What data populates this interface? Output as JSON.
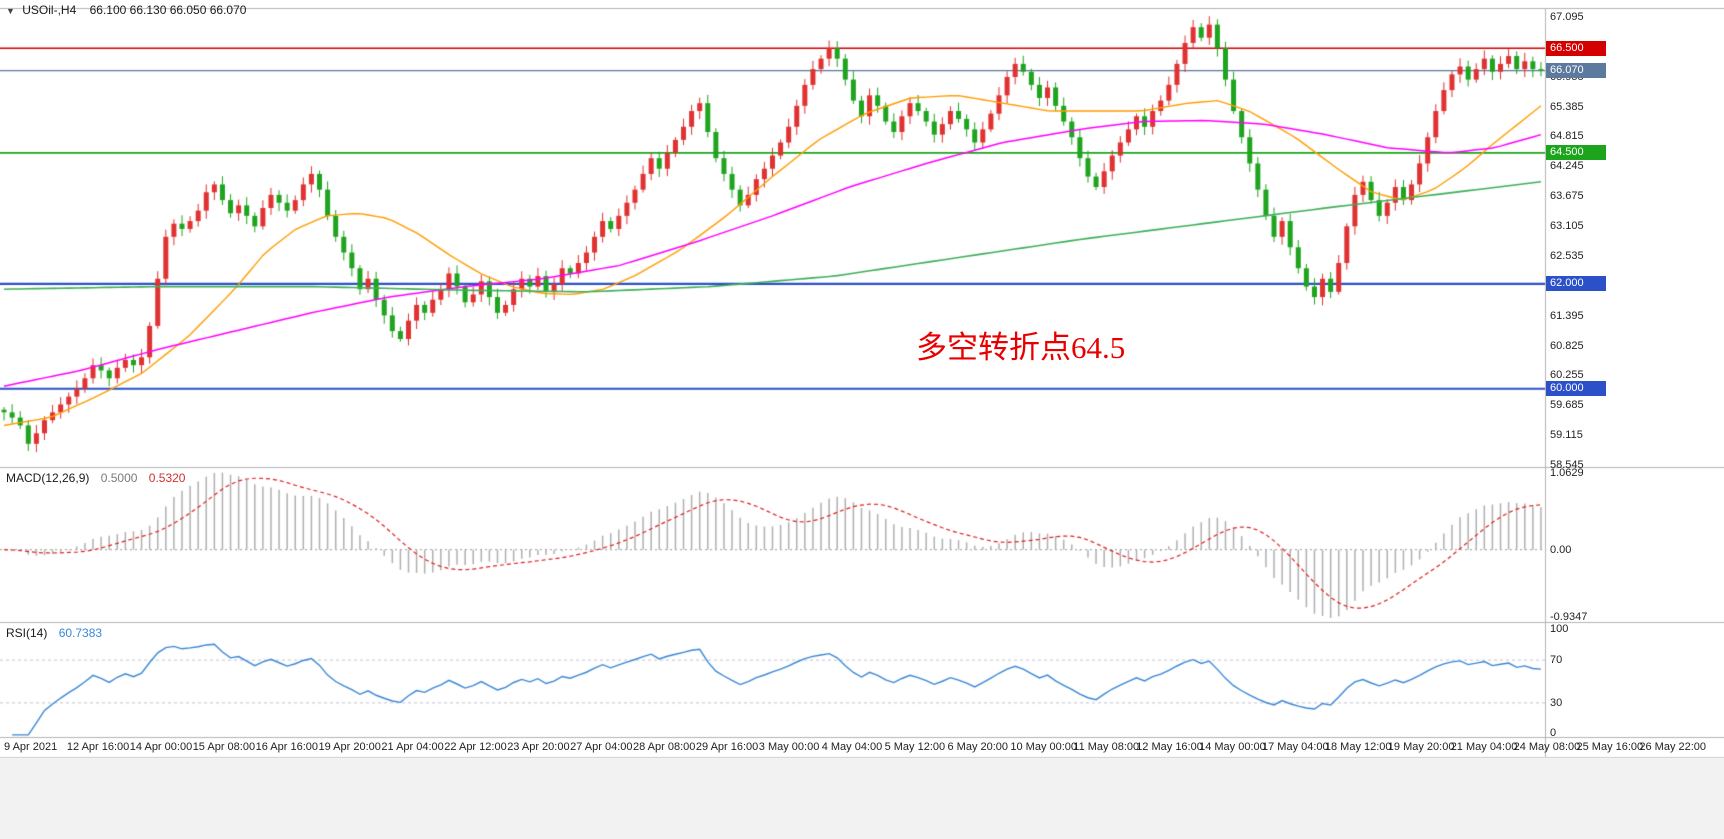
{
  "header": {
    "symbol": "USOil-,H4",
    "quote": "66.100 66.130 66.050 66.070"
  },
  "annotation": {
    "text": "多空转折点64.5",
    "color": "#e80000"
  },
  "chart_data": {
    "type": "candlestick",
    "title": "USOil- H4",
    "timeframe": "H4",
    "price_axis": {
      "min": 58.545,
      "max": 67.095,
      "step": 0.57,
      "tick_labels": [
        "67.095",
        "65.955",
        "65.385",
        "64.815",
        "64.245",
        "63.675",
        "63.105",
        "62.535",
        "61.395",
        "60.825",
        "60.255",
        "59.685",
        "59.115",
        "58.545"
      ]
    },
    "badges": [
      {
        "label": "66.500",
        "value": 66.5,
        "color": "#d40000"
      },
      {
        "label": "66.070",
        "value": 66.07,
        "color": "#5b7a9d"
      },
      {
        "label": "64.500",
        "value": 64.5,
        "color": "#1ca41c"
      },
      {
        "label": "62.000",
        "value": 62.0,
        "color": "#2b50c8"
      },
      {
        "label": "60.000",
        "value": 60.0,
        "color": "#2b50c8"
      }
    ],
    "hlines": [
      {
        "value": 66.5,
        "color": "#d40000",
        "width": 1.6
      },
      {
        "value": 64.5,
        "color": "#1ca41c",
        "width": 1.8
      },
      {
        "value": 62.0,
        "color": "#2b50c8",
        "width": 2.2
      },
      {
        "value": 60.0,
        "color": "#2b50c8",
        "width": 2.2
      }
    ],
    "current_price": {
      "value": 66.07,
      "color": "#5b7a9d",
      "width": 1.2
    },
    "candles": {
      "up_color": "#e03232",
      "down_color": "#1fa41f",
      "closes": [
        59.55,
        59.45,
        59.3,
        58.95,
        59.15,
        59.4,
        59.55,
        59.7,
        59.85,
        60.0,
        60.2,
        60.45,
        60.35,
        60.2,
        60.4,
        60.55,
        60.45,
        60.6,
        61.2,
        62.1,
        62.9,
        63.15,
        63.05,
        63.2,
        63.4,
        63.75,
        63.9,
        63.6,
        63.35,
        63.5,
        63.3,
        63.1,
        63.45,
        63.7,
        63.55,
        63.4,
        63.6,
        63.9,
        64.1,
        63.8,
        63.3,
        62.9,
        62.6,
        62.3,
        61.9,
        62.1,
        61.7,
        61.4,
        61.1,
        60.95,
        61.3,
        61.6,
        61.45,
        61.7,
        61.9,
        62.2,
        61.95,
        61.65,
        61.8,
        62.05,
        61.75,
        61.45,
        61.6,
        61.9,
        62.1,
        61.95,
        62.15,
        61.85,
        62.0,
        62.3,
        62.2,
        62.4,
        62.6,
        62.9,
        63.2,
        63.05,
        63.3,
        63.55,
        63.8,
        64.1,
        64.4,
        64.2,
        64.5,
        64.75,
        65.0,
        65.3,
        65.45,
        64.9,
        64.4,
        64.1,
        63.8,
        63.5,
        63.7,
        64.0,
        64.2,
        64.45,
        64.7,
        65.0,
        65.4,
        65.8,
        66.1,
        66.3,
        66.5,
        66.3,
        65.9,
        65.5,
        65.2,
        65.6,
        65.4,
        65.1,
        64.9,
        65.2,
        65.45,
        65.3,
        65.1,
        64.85,
        65.05,
        65.3,
        65.15,
        64.95,
        64.7,
        64.95,
        65.25,
        65.6,
        65.95,
        66.2,
        66.05,
        65.8,
        65.55,
        65.75,
        65.4,
        65.1,
        64.8,
        64.4,
        64.05,
        63.85,
        64.15,
        64.45,
        64.7,
        64.95,
        65.2,
        65.0,
        65.3,
        65.5,
        65.8,
        66.2,
        66.6,
        66.9,
        66.7,
        66.95,
        66.5,
        65.9,
        65.3,
        64.8,
        64.3,
        63.8,
        63.3,
        62.9,
        63.2,
        62.7,
        62.3,
        61.95,
        61.75,
        62.1,
        61.85,
        62.4,
        63.1,
        63.7,
        63.95,
        63.6,
        63.3,
        63.55,
        63.85,
        63.6,
        63.9,
        64.3,
        64.8,
        65.3,
        65.7,
        66.0,
        66.15,
        65.9,
        66.1,
        66.3,
        66.05,
        66.2,
        66.35,
        66.1,
        66.25,
        66.1,
        66.07
      ]
    },
    "ma_lines": [
      {
        "name": "ma-fast",
        "color": "#ff9c00",
        "width": 1.4,
        "points": [
          [
            0,
            59.3
          ],
          [
            0.03,
            59.45
          ],
          [
            0.06,
            59.85
          ],
          [
            0.09,
            60.3
          ],
          [
            0.12,
            61.0
          ],
          [
            0.15,
            61.9
          ],
          [
            0.17,
            62.6
          ],
          [
            0.19,
            63.05
          ],
          [
            0.21,
            63.3
          ],
          [
            0.23,
            63.35
          ],
          [
            0.25,
            63.25
          ],
          [
            0.27,
            62.95
          ],
          [
            0.29,
            62.55
          ],
          [
            0.31,
            62.2
          ],
          [
            0.33,
            61.95
          ],
          [
            0.35,
            61.82
          ],
          [
            0.37,
            61.8
          ],
          [
            0.39,
            61.9
          ],
          [
            0.41,
            62.15
          ],
          [
            0.44,
            62.65
          ],
          [
            0.47,
            63.3
          ],
          [
            0.5,
            64.05
          ],
          [
            0.53,
            64.75
          ],
          [
            0.56,
            65.25
          ],
          [
            0.59,
            65.55
          ],
          [
            0.62,
            65.6
          ],
          [
            0.65,
            65.45
          ],
          [
            0.68,
            65.3
          ],
          [
            0.71,
            65.3
          ],
          [
            0.74,
            65.3
          ],
          [
            0.77,
            65.45
          ],
          [
            0.79,
            65.5
          ],
          [
            0.81,
            65.3
          ],
          [
            0.84,
            64.8
          ],
          [
            0.87,
            64.15
          ],
          [
            0.89,
            63.75
          ],
          [
            0.91,
            63.6
          ],
          [
            0.93,
            63.8
          ],
          [
            0.95,
            64.2
          ],
          [
            0.97,
            64.7
          ],
          [
            1,
            65.4
          ]
        ]
      },
      {
        "name": "ma-slow",
        "color": "#ff00ff",
        "width": 1.5,
        "points": [
          [
            0,
            60.05
          ],
          [
            0.05,
            60.35
          ],
          [
            0.1,
            60.75
          ],
          [
            0.15,
            61.1
          ],
          [
            0.2,
            61.45
          ],
          [
            0.25,
            61.75
          ],
          [
            0.3,
            61.95
          ],
          [
            0.35,
            62.1
          ],
          [
            0.4,
            62.35
          ],
          [
            0.45,
            62.8
          ],
          [
            0.5,
            63.3
          ],
          [
            0.55,
            63.85
          ],
          [
            0.6,
            64.3
          ],
          [
            0.65,
            64.7
          ],
          [
            0.7,
            64.95
          ],
          [
            0.74,
            65.1
          ],
          [
            0.78,
            65.12
          ],
          [
            0.82,
            65.05
          ],
          [
            0.86,
            64.85
          ],
          [
            0.9,
            64.6
          ],
          [
            0.94,
            64.5
          ],
          [
            0.97,
            64.6
          ],
          [
            1,
            64.85
          ]
        ]
      },
      {
        "name": "ma-trend",
        "color": "#3fae5a",
        "width": 1.6,
        "points": [
          [
            0,
            61.9
          ],
          [
            0.1,
            61.95
          ],
          [
            0.2,
            61.95
          ],
          [
            0.3,
            61.88
          ],
          [
            0.38,
            61.85
          ],
          [
            0.46,
            61.95
          ],
          [
            0.54,
            62.15
          ],
          [
            0.62,
            62.5
          ],
          [
            0.7,
            62.85
          ],
          [
            0.78,
            63.15
          ],
          [
            0.86,
            63.45
          ],
          [
            0.93,
            63.7
          ],
          [
            1,
            63.95
          ]
        ]
      }
    ],
    "indicators": {
      "macd": {
        "name": "MACD(12,26,9)",
        "main": "0.5000",
        "signal": "0.5320",
        "params": [
          12,
          26,
          9
        ],
        "axis_labels": [
          "1.0629",
          "0.00",
          "-0.9347"
        ],
        "range": [
          -0.9347,
          1.0629
        ],
        "hist_color": "#b0b0b0",
        "signal_color": "#e02020"
      },
      "rsi": {
        "name": "RSI(14)",
        "value": "60.7383",
        "period": 14,
        "axis_labels": [
          "100",
          "70",
          "30",
          "0"
        ],
        "levels": [
          70,
          30
        ],
        "range": [
          0,
          100
        ],
        "line_color": "#3a87d6"
      }
    },
    "time_labels": [
      "9 Apr 2021",
      "12 Apr 16:00",
      "14 Apr 00:00",
      "15 Apr 08:00",
      "16 Apr 16:00",
      "19 Apr 20:00",
      "21 Apr 04:00",
      "22 Apr 12:00",
      "23 Apr 20:00",
      "27 Apr 04:00",
      "28 Apr 08:00",
      "29 Apr 16:00",
      "3 May 00:00",
      "4 May 04:00",
      "5 May 12:00",
      "6 May 20:00",
      "10 May 00:00",
      "11 May 08:00",
      "12 May 16:00",
      "14 May 00:00",
      "17 May 04:00",
      "18 May 12:00",
      "19 May 20:00",
      "21 May 04:00",
      "24 May 08:00",
      "25 May 16:00",
      "26 May 22:00"
    ]
  }
}
